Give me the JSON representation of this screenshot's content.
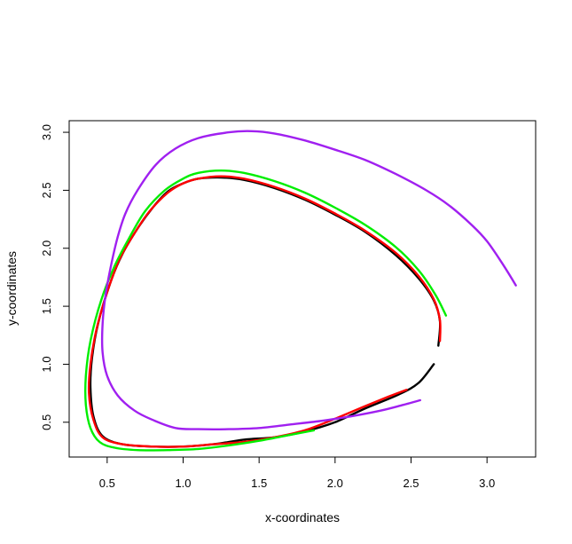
{
  "chart_data": {
    "type": "line",
    "title": "",
    "xlabel": "x-coordinates",
    "ylabel": "y-coordinates",
    "xlim": [
      0.25,
      3.32
    ],
    "ylim": [
      0.2,
      3.1
    ],
    "xticks": [
      "0.5",
      "1.0",
      "1.5",
      "2.0",
      "2.5",
      "3.0"
    ],
    "yticks": [
      "0.5",
      "1.0",
      "1.5",
      "2.0",
      "2.5",
      "3.0"
    ],
    "grid": false,
    "legend": "none",
    "series": [
      {
        "color": "#000000",
        "points": [
          [
            2.65,
            1.0
          ],
          [
            2.55,
            0.84
          ],
          [
            2.42,
            0.74
          ],
          [
            2.2,
            0.62
          ],
          [
            2.0,
            0.5
          ],
          [
            1.8,
            0.42
          ],
          [
            1.6,
            0.37
          ],
          [
            1.4,
            0.35
          ],
          [
            1.2,
            0.31
          ],
          [
            1.0,
            0.29
          ],
          [
            0.8,
            0.29
          ],
          [
            0.6,
            0.31
          ],
          [
            0.47,
            0.38
          ],
          [
            0.41,
            0.55
          ],
          [
            0.39,
            0.8
          ],
          [
            0.4,
            1.05
          ],
          [
            0.44,
            1.35
          ],
          [
            0.52,
            1.7
          ],
          [
            0.6,
            1.95
          ],
          [
            0.7,
            2.17
          ],
          [
            0.8,
            2.35
          ],
          [
            0.9,
            2.49
          ],
          [
            1.0,
            2.56
          ],
          [
            1.1,
            2.6
          ],
          [
            1.25,
            2.61
          ],
          [
            1.4,
            2.59
          ],
          [
            1.6,
            2.52
          ],
          [
            1.8,
            2.42
          ],
          [
            2.0,
            2.29
          ],
          [
            2.2,
            2.14
          ],
          [
            2.4,
            1.94
          ],
          [
            2.55,
            1.74
          ],
          [
            2.65,
            1.55
          ],
          [
            2.69,
            1.37
          ],
          [
            2.68,
            1.16
          ]
        ]
      },
      {
        "color": "#ff0000",
        "points": [
          [
            2.47,
            0.78
          ],
          [
            2.35,
            0.72
          ],
          [
            2.2,
            0.64
          ],
          [
            2.0,
            0.53
          ],
          [
            1.8,
            0.43
          ],
          [
            1.6,
            0.37
          ],
          [
            1.4,
            0.33
          ],
          [
            1.2,
            0.31
          ],
          [
            1.0,
            0.29
          ],
          [
            0.8,
            0.29
          ],
          [
            0.6,
            0.31
          ],
          [
            0.47,
            0.37
          ],
          [
            0.41,
            0.52
          ],
          [
            0.38,
            0.75
          ],
          [
            0.39,
            1.0
          ],
          [
            0.43,
            1.3
          ],
          [
            0.5,
            1.62
          ],
          [
            0.58,
            1.9
          ],
          [
            0.68,
            2.13
          ],
          [
            0.78,
            2.32
          ],
          [
            0.9,
            2.48
          ],
          [
            1.0,
            2.56
          ],
          [
            1.1,
            2.6
          ],
          [
            1.25,
            2.62
          ],
          [
            1.4,
            2.6
          ],
          [
            1.6,
            2.53
          ],
          [
            1.8,
            2.43
          ],
          [
            2.0,
            2.3
          ],
          [
            2.2,
            2.15
          ],
          [
            2.4,
            1.96
          ],
          [
            2.55,
            1.76
          ],
          [
            2.65,
            1.56
          ],
          [
            2.69,
            1.38
          ],
          [
            2.69,
            1.2
          ]
        ]
      },
      {
        "color": "#00ee00",
        "points": [
          [
            1.86,
            0.43
          ],
          [
            1.7,
            0.39
          ],
          [
            1.5,
            0.34
          ],
          [
            1.3,
            0.3
          ],
          [
            1.1,
            0.27
          ],
          [
            0.9,
            0.26
          ],
          [
            0.7,
            0.26
          ],
          [
            0.55,
            0.28
          ],
          [
            0.45,
            0.33
          ],
          [
            0.39,
            0.45
          ],
          [
            0.36,
            0.65
          ],
          [
            0.36,
            0.9
          ],
          [
            0.39,
            1.2
          ],
          [
            0.46,
            1.55
          ],
          [
            0.55,
            1.85
          ],
          [
            0.65,
            2.1
          ],
          [
            0.75,
            2.32
          ],
          [
            0.88,
            2.5
          ],
          [
            1.0,
            2.6
          ],
          [
            1.1,
            2.65
          ],
          [
            1.25,
            2.67
          ],
          [
            1.4,
            2.65
          ],
          [
            1.6,
            2.58
          ],
          [
            1.8,
            2.48
          ],
          [
            2.0,
            2.35
          ],
          [
            2.2,
            2.2
          ],
          [
            2.4,
            2.01
          ],
          [
            2.55,
            1.81
          ],
          [
            2.66,
            1.6
          ],
          [
            2.73,
            1.42
          ]
        ]
      },
      {
        "color": "#a020f0",
        "points": [
          [
            3.19,
            1.68
          ],
          [
            3.1,
            1.87
          ],
          [
            3.0,
            2.06
          ],
          [
            2.9,
            2.2
          ],
          [
            2.75,
            2.37
          ],
          [
            2.6,
            2.5
          ],
          [
            2.4,
            2.64
          ],
          [
            2.2,
            2.76
          ],
          [
            2.0,
            2.85
          ],
          [
            1.8,
            2.93
          ],
          [
            1.6,
            2.99
          ],
          [
            1.45,
            3.01
          ],
          [
            1.3,
            3.0
          ],
          [
            1.1,
            2.95
          ],
          [
            0.95,
            2.86
          ],
          [
            0.82,
            2.72
          ],
          [
            0.7,
            2.5
          ],
          [
            0.62,
            2.3
          ],
          [
            0.57,
            2.1
          ],
          [
            0.53,
            1.88
          ],
          [
            0.49,
            1.6
          ],
          [
            0.47,
            1.35
          ],
          [
            0.47,
            1.1
          ],
          [
            0.5,
            0.9
          ],
          [
            0.57,
            0.73
          ],
          [
            0.68,
            0.6
          ],
          [
            0.8,
            0.52
          ],
          [
            0.95,
            0.45
          ],
          [
            1.1,
            0.44
          ],
          [
            1.3,
            0.44
          ],
          [
            1.5,
            0.45
          ],
          [
            1.7,
            0.48
          ],
          [
            1.9,
            0.51
          ],
          [
            2.1,
            0.55
          ],
          [
            2.3,
            0.6
          ],
          [
            2.45,
            0.65
          ],
          [
            2.56,
            0.69
          ]
        ]
      }
    ]
  }
}
